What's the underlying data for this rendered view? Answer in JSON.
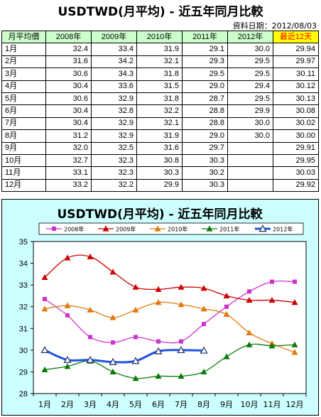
{
  "header": {
    "title": "USDTWD(月平均) - 近五年同月比較",
    "date_text": "資料日期：2012/08/03"
  },
  "table": {
    "columns": [
      "月平均價",
      "2008年",
      "2009年",
      "2010年",
      "2011年",
      "2012年",
      "最近12天"
    ],
    "rows": [
      [
        "1月",
        "32.4",
        "33.4",
        "31.9",
        "29.1",
        "30.0",
        "29.94"
      ],
      [
        "2月",
        "31.6",
        "34.2",
        "32.1",
        "29.3",
        "29.5",
        "29.97"
      ],
      [
        "3月",
        "30.6",
        "34.3",
        "31.8",
        "29.5",
        "29.5",
        "30.11"
      ],
      [
        "4月",
        "30.4",
        "33.6",
        "31.5",
        "29.0",
        "29.4",
        "30.12"
      ],
      [
        "5月",
        "30.6",
        "32.9",
        "31.8",
        "28.7",
        "29.5",
        "30.13"
      ],
      [
        "6月",
        "30.4",
        "32.8",
        "32.2",
        "28.8",
        "29.9",
        "30.08"
      ],
      [
        "7月",
        "30.4",
        "32.9",
        "32.1",
        "28.8",
        "30.0",
        "30.02"
      ],
      [
        "8月",
        "31.2",
        "32.9",
        "31.9",
        "29.0",
        "30.0",
        "30.00"
      ],
      [
        "9月",
        "32.0",
        "32.5",
        "31.6",
        "29.7",
        "",
        "29.91"
      ],
      [
        "10月",
        "32.7",
        "32.3",
        "30.8",
        "30.3",
        "",
        "29.95"
      ],
      [
        "11月",
        "33.1",
        "32.3",
        "30.3",
        "30.2",
        "",
        "30.03"
      ],
      [
        "12月",
        "33.2",
        "32.2",
        "29.9",
        "30.3",
        "",
        "29.92"
      ]
    ]
  },
  "colors": {
    "header_bg": "#ccffcc",
    "latest_bg": "#ffff00",
    "latest_text": "#ff0000",
    "chart_bg": "#ccffff",
    "plot_bg": "#ffffff"
  },
  "chart_data": {
    "type": "line",
    "title": "USDTWD(月平均) - 近五年同月比較",
    "categories": [
      "1月",
      "2月",
      "3月",
      "4月",
      "5月",
      "6月",
      "7月",
      "8月",
      "9月",
      "10月",
      "11月",
      "12月"
    ],
    "ylim": [
      28,
      35
    ],
    "yticks": [
      28,
      29,
      30,
      31,
      32,
      33,
      34,
      35
    ],
    "grid": false,
    "legend_position": "top",
    "series": [
      {
        "name": "2008年",
        "color": "#cc33cc",
        "marker": "square",
        "values": [
          32.35,
          31.6,
          30.6,
          30.35,
          30.6,
          30.4,
          30.4,
          31.2,
          32.0,
          32.7,
          33.15,
          33.15
        ]
      },
      {
        "name": "2009年",
        "color": "#cc0000",
        "marker": "triangle",
        "values": [
          33.35,
          34.25,
          34.3,
          33.6,
          32.9,
          32.8,
          32.9,
          32.85,
          32.5,
          32.3,
          32.3,
          32.2
        ]
      },
      {
        "name": "2010年",
        "color": "#e07a10",
        "marker": "triangle",
        "values": [
          31.9,
          32.05,
          31.85,
          31.5,
          31.85,
          32.2,
          32.1,
          31.9,
          31.65,
          30.8,
          30.3,
          29.9
        ]
      },
      {
        "name": "2011年",
        "color": "#0a7a0a",
        "marker": "triangle",
        "values": [
          29.1,
          29.25,
          29.5,
          29.0,
          28.7,
          28.8,
          28.8,
          29.0,
          29.7,
          30.25,
          30.2,
          30.25
        ]
      },
      {
        "name": "2012年",
        "color": "#2255dd",
        "marker": "open-triangle",
        "values": [
          30.0,
          29.55,
          29.55,
          29.45,
          29.5,
          29.95,
          30.0,
          29.98,
          null,
          null,
          null,
          null
        ]
      }
    ]
  }
}
